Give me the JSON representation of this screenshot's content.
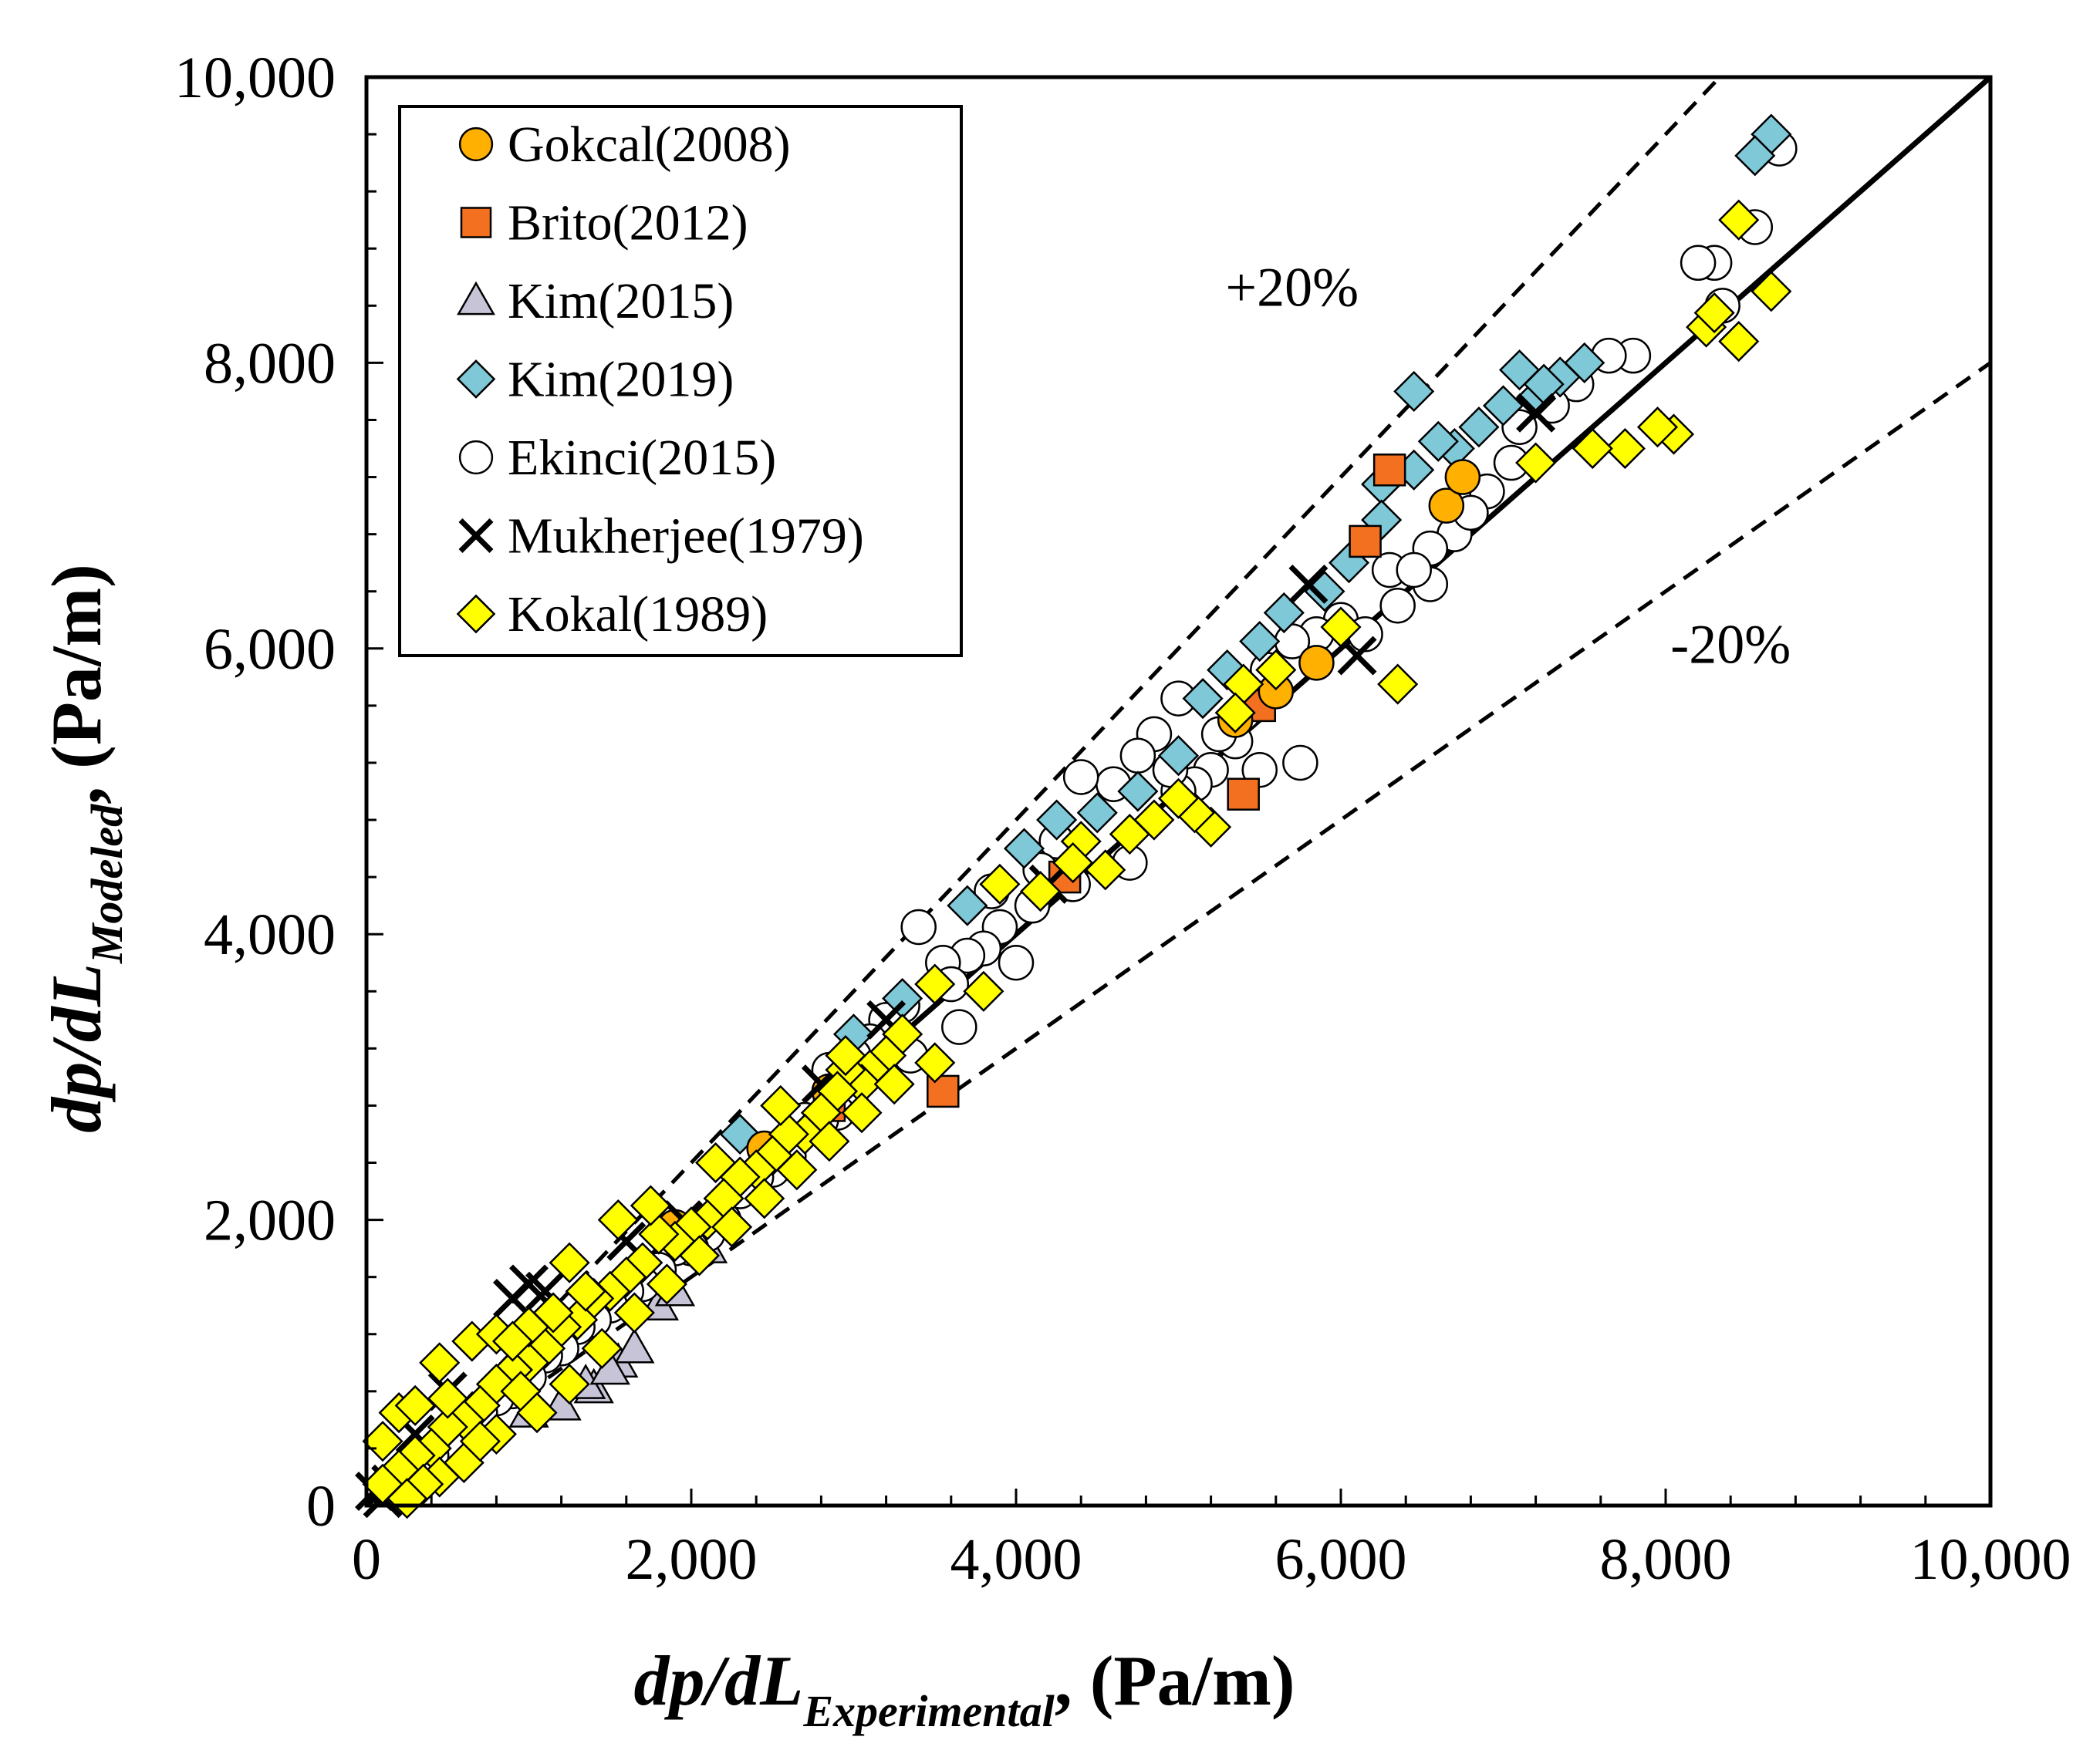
{
  "chart_data": {
    "type": "scatter",
    "xlabel": {
      "main": "dp/dL",
      "sub": "Experimental",
      "unit": ", (Pa/m)"
    },
    "ylabel": {
      "main": "dp/dL",
      "sub": "Modeled",
      "unit": ", (Pa/m)"
    },
    "xlim": [
      0,
      10000
    ],
    "ylim": [
      0,
      10000
    ],
    "xticks": [
      0,
      2000,
      4000,
      6000,
      8000,
      10000
    ],
    "yticks": [
      0,
      2000,
      4000,
      6000,
      8000,
      10000
    ],
    "xtick_labels": [
      "0",
      "2,000",
      "4,000",
      "6,000",
      "8,000",
      "10,000"
    ],
    "ytick_labels": [
      "0",
      "2,000",
      "4,000",
      "6,000",
      "8,000",
      "10,000"
    ],
    "minor_step": 400,
    "legend_position": "top-left",
    "reference_lines": [
      {
        "name": "parity",
        "slope": 1.0,
        "style": "solid"
      },
      {
        "name": "plus-20",
        "slope": 1.2,
        "style": "dashed"
      },
      {
        "name": "minus-20",
        "slope": 0.8,
        "style": "dashed"
      }
    ],
    "annotations": [
      {
        "text": "+20%",
        "x": 5700,
        "y": 8400
      },
      {
        "text": "-20%",
        "x": 8400,
        "y": 5900
      }
    ],
    "series": [
      {
        "name": "Gokcal(2008)",
        "marker": "circle",
        "color": "#FFB000",
        "points": [
          [
            6650,
            7000
          ],
          [
            6750,
            7200
          ],
          [
            5600,
            5700
          ],
          [
            5850,
            5900
          ],
          [
            2450,
            2500
          ],
          [
            2850,
            2900
          ],
          [
            1900,
            1950
          ],
          [
            1100,
            1150
          ],
          [
            5350,
            5500
          ]
        ]
      },
      {
        "name": "Brito(2012)",
        "marker": "square",
        "color": "#F37020",
        "points": [
          [
            6300,
            7250
          ],
          [
            6150,
            6750
          ],
          [
            5400,
            4980
          ],
          [
            5500,
            5600
          ],
          [
            3550,
            2900
          ],
          [
            2850,
            2800
          ],
          [
            4300,
            4400
          ]
        ]
      },
      {
        "name": "Kim(2015)",
        "marker": "triangle",
        "color": "#C8C4D8",
        "points": [
          [
            1400,
            820
          ],
          [
            1550,
            1000
          ],
          [
            1650,
            1100
          ],
          [
            1350,
            850
          ],
          [
            1800,
            1400
          ],
          [
            1500,
            950
          ],
          [
            1200,
            700
          ],
          [
            1000,
            650
          ],
          [
            1900,
            1500
          ],
          [
            2100,
            1800
          ]
        ]
      },
      {
        "name": "Kim(2019)",
        "marker": "diamond",
        "color": "#7EC8D8",
        "points": [
          [
            8650,
            9600
          ],
          [
            8550,
            9450
          ],
          [
            7500,
            8000
          ],
          [
            7100,
            7950
          ],
          [
            6450,
            7800
          ],
          [
            6850,
            7550
          ],
          [
            6250,
            7150
          ],
          [
            6450,
            7250
          ],
          [
            6700,
            7400
          ],
          [
            7000,
            7700
          ],
          [
            7200,
            7750
          ],
          [
            7350,
            7900
          ],
          [
            6250,
            6900
          ],
          [
            6050,
            6600
          ],
          [
            5900,
            6400
          ],
          [
            5650,
            6250
          ],
          [
            5500,
            6050
          ],
          [
            5300,
            5850
          ],
          [
            5150,
            5650
          ],
          [
            5000,
            5250
          ],
          [
            4750,
            5000
          ],
          [
            4500,
            4850
          ],
          [
            4250,
            4800
          ],
          [
            4050,
            4600
          ],
          [
            3700,
            4200
          ],
          [
            3300,
            3550
          ],
          [
            3000,
            3300
          ],
          [
            2300,
            2600
          ],
          [
            7250,
            7850
          ],
          [
            6600,
            7450
          ]
        ]
      },
      {
        "name": "Ekinci(2015)",
        "marker": "circle",
        "color": "#FFFFFF",
        "points": [
          [
            8700,
            9500
          ],
          [
            8300,
            8700
          ],
          [
            8350,
            8400
          ],
          [
            8550,
            8950
          ],
          [
            8200,
            8700
          ],
          [
            7800,
            8050
          ],
          [
            7650,
            8050
          ],
          [
            7450,
            7850
          ],
          [
            7300,
            7700
          ],
          [
            7100,
            7550
          ],
          [
            6900,
            7100
          ],
          [
            7050,
            7300
          ],
          [
            6700,
            6800
          ],
          [
            6550,
            6700
          ],
          [
            6300,
            6550
          ],
          [
            6550,
            6450
          ],
          [
            6450,
            6550
          ],
          [
            6350,
            6300
          ],
          [
            6000,
            6200
          ],
          [
            5850,
            6100
          ],
          [
            5700,
            6050
          ],
          [
            5550,
            5850
          ],
          [
            5400,
            5550
          ],
          [
            5350,
            5350
          ],
          [
            5200,
            5150
          ],
          [
            5100,
            5050
          ],
          [
            5000,
            5000
          ],
          [
            5000,
            5650
          ],
          [
            4850,
            5400
          ],
          [
            4750,
            5250
          ],
          [
            4600,
            5050
          ],
          [
            4400,
            5100
          ],
          [
            4250,
            4650
          ],
          [
            4150,
            4450
          ],
          [
            4100,
            4200
          ],
          [
            3900,
            4050
          ],
          [
            3800,
            3900
          ],
          [
            3700,
            3850
          ],
          [
            3550,
            3800
          ],
          [
            3400,
            4050
          ],
          [
            3300,
            3500
          ],
          [
            3200,
            3400
          ],
          [
            3100,
            3250
          ],
          [
            3000,
            3150
          ],
          [
            2900,
            2750
          ],
          [
            2800,
            2700
          ],
          [
            2700,
            2700
          ],
          [
            2600,
            2450
          ],
          [
            2500,
            2350
          ],
          [
            2400,
            2300
          ],
          [
            2300,
            2200
          ],
          [
            2200,
            2000
          ],
          [
            2100,
            1900
          ],
          [
            2000,
            1800
          ],
          [
            1900,
            1800
          ],
          [
            1800,
            1650
          ],
          [
            1700,
            1550
          ],
          [
            1600,
            1500
          ],
          [
            1500,
            1400
          ],
          [
            1400,
            1300
          ],
          [
            1300,
            1250
          ],
          [
            1200,
            1100
          ],
          [
            1100,
            1050
          ],
          [
            1000,
            900
          ],
          [
            900,
            800
          ],
          [
            800,
            750
          ],
          [
            700,
            650
          ],
          [
            600,
            550
          ],
          [
            500,
            450
          ],
          [
            400,
            350
          ],
          [
            300,
            300
          ],
          [
            200,
            200
          ],
          [
            4700,
            4500
          ],
          [
            4950,
            5150
          ],
          [
            5250,
            5400
          ],
          [
            4000,
            3800
          ],
          [
            3600,
            3650
          ],
          [
            3850,
            4300
          ],
          [
            4350,
            4350
          ],
          [
            3650,
            3350
          ],
          [
            2850,
            3050
          ],
          [
            3350,
            3150
          ],
          [
            5750,
            5200
          ],
          [
            5500,
            5150
          ],
          [
            6150,
            6100
          ],
          [
            6800,
            6950
          ]
        ]
      },
      {
        "name": "Mukherjee(1979)",
        "marker": "x",
        "color": "#000000",
        "points": [
          [
            7200,
            7650
          ],
          [
            5800,
            6450
          ],
          [
            6100,
            5950
          ],
          [
            4200,
            4350
          ],
          [
            3200,
            3400
          ],
          [
            2800,
            2950
          ],
          [
            1950,
            2000
          ],
          [
            1600,
            1850
          ],
          [
            900,
            1450
          ],
          [
            1000,
            1550
          ],
          [
            1100,
            1500
          ],
          [
            500,
            800
          ],
          [
            300,
            500
          ],
          [
            100,
            50
          ],
          [
            50,
            100
          ],
          [
            150,
            150
          ]
        ]
      },
      {
        "name": "Kokal(1989)",
        "marker": "diamond",
        "color": "#FFFF00",
        "points": [
          [
            8650,
            8500
          ],
          [
            8450,
            8150
          ],
          [
            8450,
            9000
          ],
          [
            8250,
            8250
          ],
          [
            8300,
            8350
          ],
          [
            8050,
            7500
          ],
          [
            7950,
            7550
          ],
          [
            7750,
            7400
          ],
          [
            7550,
            7400
          ],
          [
            7200,
            7300
          ],
          [
            6350,
            5750
          ],
          [
            6000,
            6150
          ],
          [
            5600,
            5850
          ],
          [
            5400,
            5750
          ],
          [
            5350,
            5550
          ],
          [
            5200,
            4750
          ],
          [
            5100,
            4850
          ],
          [
            5000,
            4950
          ],
          [
            4850,
            4800
          ],
          [
            4700,
            4700
          ],
          [
            4550,
            4450
          ],
          [
            4400,
            4650
          ],
          [
            4350,
            4500
          ],
          [
            4150,
            4300
          ],
          [
            3900,
            4350
          ],
          [
            3800,
            3600
          ],
          [
            3500,
            3650
          ],
          [
            3500,
            3100
          ],
          [
            3300,
            3300
          ],
          [
            3200,
            3150
          ],
          [
            3100,
            3050
          ],
          [
            3050,
            2950
          ],
          [
            2950,
            3050
          ],
          [
            2900,
            2900
          ],
          [
            2800,
            2750
          ],
          [
            2700,
            2600
          ],
          [
            2600,
            2600
          ],
          [
            2500,
            2450
          ],
          [
            2400,
            2350
          ],
          [
            2300,
            2300
          ],
          [
            2200,
            2150
          ],
          [
            2100,
            2000
          ],
          [
            2000,
            1950
          ],
          [
            1900,
            1850
          ],
          [
            1800,
            1900
          ],
          [
            1700,
            1700
          ],
          [
            1600,
            1600
          ],
          [
            1500,
            1500
          ],
          [
            1400,
            1450
          ],
          [
            1300,
            1300
          ],
          [
            1200,
            1250
          ],
          [
            1100,
            1100
          ],
          [
            1000,
            1000
          ],
          [
            900,
            950
          ],
          [
            800,
            850
          ],
          [
            700,
            700
          ],
          [
            600,
            600
          ],
          [
            500,
            550
          ],
          [
            400,
            400
          ],
          [
            300,
            350
          ],
          [
            200,
            250
          ],
          [
            100,
            150
          ],
          [
            100,
            450
          ],
          [
            200,
            650
          ],
          [
            300,
            700
          ],
          [
            450,
            1000
          ],
          [
            650,
            1150
          ],
          [
            800,
            1200
          ],
          [
            1000,
            1250
          ],
          [
            1250,
            1700
          ],
          [
            1350,
            1500
          ],
          [
            1150,
            1350
          ],
          [
            950,
            800
          ],
          [
            800,
            500
          ],
          [
            600,
            300
          ],
          [
            450,
            200
          ],
          [
            700,
            450
          ],
          [
            1050,
            650
          ],
          [
            1250,
            850
          ],
          [
            1450,
            1100
          ],
          [
            1650,
            1350
          ],
          [
            1850,
            1550
          ],
          [
            2050,
            1750
          ],
          [
            2250,
            1950
          ],
          [
            2450,
            2150
          ],
          [
            2650,
            2350
          ],
          [
            2850,
            2550
          ],
          [
            3050,
            2750
          ],
          [
            3250,
            2950
          ],
          [
            1550,
            2000
          ],
          [
            1750,
            2100
          ],
          [
            2150,
            2400
          ],
          [
            2550,
            2800
          ],
          [
            2950,
            3150
          ],
          [
            500,
            750
          ],
          [
            350,
            150
          ],
          [
            250,
            50
          ],
          [
            900,
            1150
          ]
        ]
      }
    ],
    "legend": [
      "Gokcal(2008)",
      "Brito(2012)",
      "Kim(2015)",
      "Kim(2019)",
      "Ekinci(2015)",
      "Mukherjee(1979)",
      "Kokal(1989)"
    ]
  }
}
